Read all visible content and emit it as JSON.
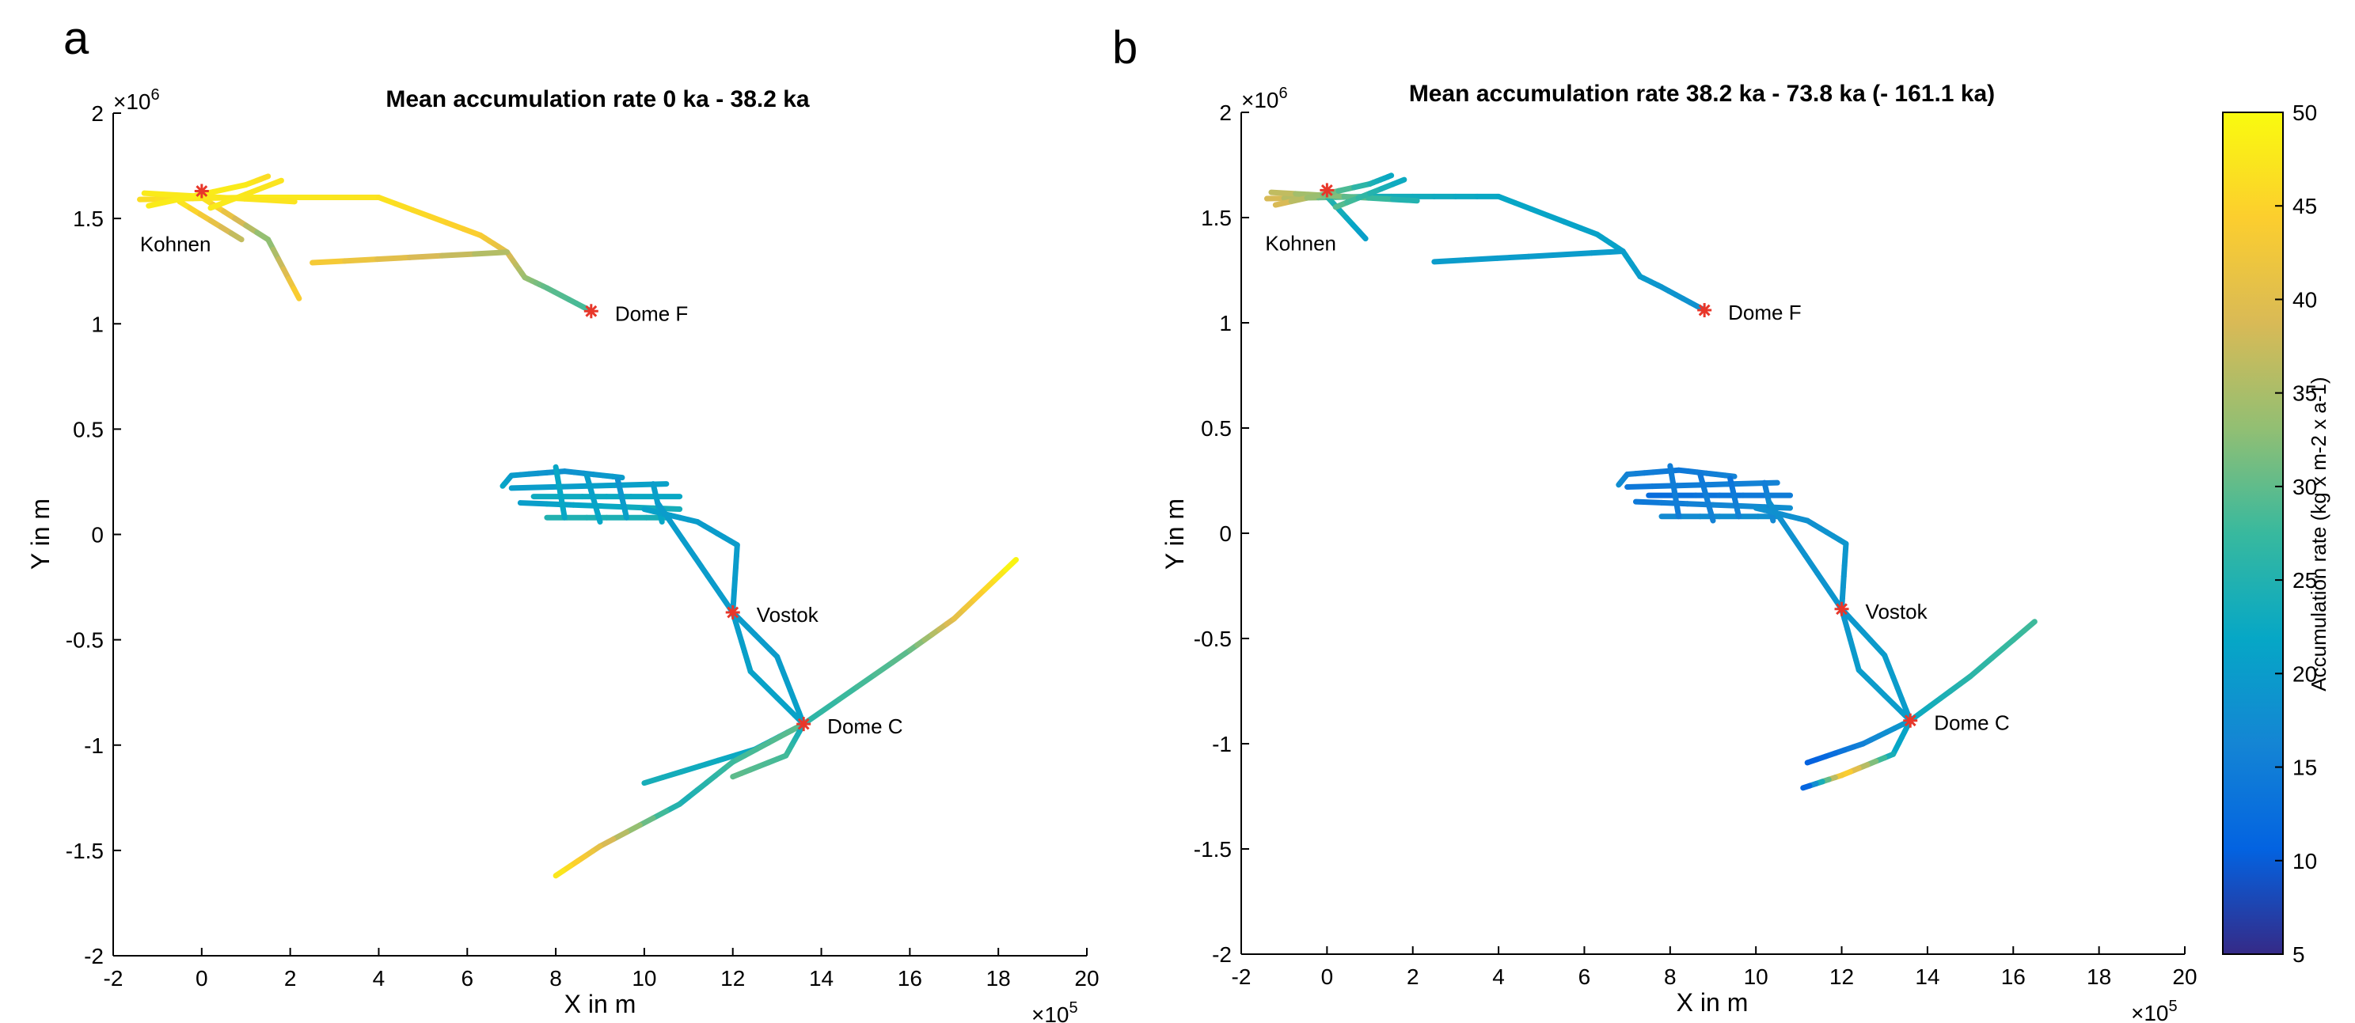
{
  "chart_data": [
    {
      "type": "scatter",
      "panel": "a",
      "title": "Mean accumulation rate 0 ka - 38.2 ka",
      "xlabel": "X in m",
      "ylabel": "Y in m",
      "x_multiplier": "×10^5",
      "y_multiplier": "×10^6",
      "xlim": [
        -2,
        20
      ],
      "ylim": [
        -2,
        2
      ],
      "xticks": [
        "-2",
        "0",
        "2",
        "4",
        "6",
        "8",
        "10",
        "12",
        "14",
        "16",
        "18",
        "20"
      ],
      "yticks": [
        "-2",
        "-1.5",
        "-1",
        "-0.5",
        "0",
        "0.5",
        "1",
        "1.5",
        "2"
      ],
      "sites": [
        {
          "name": "Kohnen",
          "x": 0,
          "y": 1.63
        },
        {
          "name": "Dome F",
          "x": 8.8,
          "y": 1.06
        },
        {
          "name": "Vostok",
          "x": 12.0,
          "y": -0.37
        },
        {
          "name": "Dome C",
          "x": 13.6,
          "y": -0.9
        }
      ],
      "tracks": [
        {
          "points": [
            [
              -1.4,
              1.59
            ],
            [
              1.0,
              1.6
            ],
            [
              4.0,
              1.6
            ],
            [
              6.3,
              1.42
            ],
            [
              6.9,
              1.34
            ],
            [
              7.3,
              1.22
            ],
            [
              7.8,
              1.17
            ],
            [
              8.8,
              1.06
            ]
          ],
          "accumulation": [
            46,
            48,
            47,
            44,
            40,
            34,
            30,
            28
          ]
        },
        {
          "points": [
            [
              2.5,
              1.29
            ],
            [
              6.9,
              1.34
            ]
          ],
          "accumulation": [
            44,
            35
          ]
        },
        {
          "points": [
            [
              0.0,
              1.6
            ],
            [
              1.5,
              1.4
            ],
            [
              2.2,
              1.12
            ]
          ],
          "accumulation": [
            48,
            32,
            45
          ]
        },
        {
          "points": [
            [
              -0.5,
              1.58
            ],
            [
              0.9,
              1.4
            ]
          ],
          "accumulation": [
            48,
            36
          ]
        },
        {
          "points": [
            [
              -1.3,
              1.62
            ],
            [
              2.1,
              1.58
            ]
          ],
          "accumulation": [
            48,
            47
          ]
        },
        {
          "points": [
            [
              -1.2,
              1.56
            ],
            [
              1.0,
              1.66
            ],
            [
              1.5,
              1.7
            ]
          ],
          "accumulation": [
            48,
            48,
            46
          ]
        },
        {
          "points": [
            [
              0.2,
              1.55
            ],
            [
              1.8,
              1.68
            ]
          ],
          "accumulation": [
            48,
            47
          ]
        },
        {
          "points": [
            [
              6.8,
              0.23
            ],
            [
              7.0,
              0.28
            ],
            [
              8.2,
              0.3
            ],
            [
              9.5,
              0.27
            ]
          ],
          "accumulation": [
            22,
            20,
            18,
            20
          ]
        },
        {
          "points": [
            [
              7.0,
              0.22
            ],
            [
              10.5,
              0.24
            ]
          ],
          "accumulation": [
            20,
            21
          ]
        },
        {
          "points": [
            [
              7.5,
              0.18
            ],
            [
              10.8,
              0.18
            ]
          ],
          "accumulation": [
            23,
            22
          ]
        },
        {
          "points": [
            [
              7.2,
              0.15
            ],
            [
              10.8,
              0.12
            ]
          ],
          "accumulation": [
            20,
            24
          ]
        },
        {
          "points": [
            [
              7.8,
              0.08
            ],
            [
              10.5,
              0.08
            ]
          ],
          "accumulation": [
            25,
            24
          ]
        },
        {
          "points": [
            [
              8.0,
              0.32
            ],
            [
              8.2,
              0.08
            ]
          ],
          "accumulation": [
            22,
            22
          ]
        },
        {
          "points": [
            [
              8.7,
              0.28
            ],
            [
              9.0,
              0.06
            ]
          ],
          "accumulation": [
            20,
            22
          ]
        },
        {
          "points": [
            [
              9.4,
              0.26
            ],
            [
              9.6,
              0.08
            ]
          ],
          "accumulation": [
            18,
            21
          ]
        },
        {
          "points": [
            [
              10.2,
              0.24
            ],
            [
              10.4,
              0.06
            ]
          ],
          "accumulation": [
            20,
            22
          ]
        },
        {
          "points": [
            [
              10.0,
              0.12
            ],
            [
              11.2,
              0.06
            ],
            [
              12.1,
              -0.05
            ],
            [
              12.0,
              -0.37
            ]
          ],
          "accumulation": [
            21,
            20,
            20,
            20
          ]
        },
        {
          "points": [
            [
              10.3,
              0.15
            ],
            [
              12.0,
              -0.37
            ]
          ],
          "accumulation": [
            20,
            20
          ]
        },
        {
          "points": [
            [
              12.0,
              -0.37
            ],
            [
              13.0,
              -0.58
            ],
            [
              13.6,
              -0.9
            ]
          ],
          "accumulation": [
            20,
            20,
            21
          ]
        },
        {
          "points": [
            [
              12.0,
              -0.37
            ],
            [
              12.4,
              -0.65
            ],
            [
              13.6,
              -0.9
            ]
          ],
          "accumulation": [
            20,
            21,
            21
          ]
        },
        {
          "points": [
            [
              13.6,
              -0.9
            ],
            [
              16.0,
              -0.55
            ],
            [
              17.0,
              -0.4
            ],
            [
              18.4,
              -0.12
            ]
          ],
          "accumulation": [
            26,
            30,
            40,
            50
          ]
        },
        {
          "points": [
            [
              13.6,
              -0.9
            ],
            [
              12.5,
              -1.02
            ],
            [
              10.0,
              -1.18
            ]
          ],
          "accumulation": [
            24,
            22,
            24
          ]
        },
        {
          "points": [
            [
              13.6,
              -0.9
            ],
            [
              12.0,
              -1.08
            ],
            [
              10.8,
              -1.28
            ],
            [
              9.0,
              -1.48
            ],
            [
              8.0,
              -1.62
            ]
          ],
          "accumulation": [
            30,
            28,
            24,
            40,
            48
          ]
        },
        {
          "points": [
            [
              13.6,
              -0.9
            ],
            [
              13.2,
              -1.05
            ],
            [
              12.0,
              -1.15
            ]
          ],
          "accumulation": [
            22,
            28,
            30
          ]
        }
      ]
    },
    {
      "type": "scatter",
      "panel": "b",
      "title": "Mean accumulation rate 38.2 ka - 73.8 ka (- 161.1 ka)",
      "xlabel": "X in m",
      "ylabel": "Y in m",
      "x_multiplier": "×10^5",
      "y_multiplier": "×10^6",
      "xlim": [
        -2,
        20
      ],
      "ylim": [
        -2,
        2
      ],
      "xticks": [
        "-2",
        "0",
        "2",
        "4",
        "6",
        "8",
        "10",
        "12",
        "14",
        "16",
        "18",
        "20"
      ],
      "yticks": [
        "-2",
        "-1.5",
        "-1",
        "-0.5",
        "0",
        "0.5",
        "1",
        "1.5",
        "2"
      ],
      "sites": [
        {
          "name": "Kohnen",
          "x": 0,
          "y": 1.63
        },
        {
          "name": "Dome F",
          "x": 8.8,
          "y": 1.06
        },
        {
          "name": "Vostok",
          "x": 12.0,
          "y": -0.36
        },
        {
          "name": "Dome C",
          "x": 13.6,
          "y": -0.89
        }
      ],
      "tracks": [
        {
          "points": [
            [
              -1.4,
              1.59
            ],
            [
              1.0,
              1.6
            ],
            [
              4.0,
              1.6
            ],
            [
              6.3,
              1.42
            ],
            [
              6.9,
              1.34
            ],
            [
              7.3,
              1.22
            ],
            [
              7.8,
              1.17
            ],
            [
              8.8,
              1.06
            ]
          ],
          "accumulation": [
            40,
            24,
            22,
            21,
            21,
            20,
            19,
            18
          ]
        },
        {
          "points": [
            [
              2.5,
              1.29
            ],
            [
              6.9,
              1.34
            ]
          ],
          "accumulation": [
            20,
            20
          ]
        },
        {
          "points": [
            [
              0.0,
              1.6
            ],
            [
              0.9,
              1.4
            ]
          ],
          "accumulation": [
            26,
            20
          ]
        },
        {
          "points": [
            [
              -1.3,
              1.62
            ],
            [
              2.1,
              1.58
            ]
          ],
          "accumulation": [
            38,
            24
          ]
        },
        {
          "points": [
            [
              -1.2,
              1.56
            ],
            [
              1.0,
              1.66
            ],
            [
              1.5,
              1.7
            ]
          ],
          "accumulation": [
            40,
            25,
            22
          ]
        },
        {
          "points": [
            [
              0.2,
              1.55
            ],
            [
              1.8,
              1.68
            ]
          ],
          "accumulation": [
            30,
            22
          ]
        },
        {
          "points": [
            [
              6.8,
              0.23
            ],
            [
              7.0,
              0.28
            ],
            [
              8.2,
              0.3
            ],
            [
              9.5,
              0.27
            ]
          ],
          "accumulation": [
            18,
            16,
            14,
            16
          ]
        },
        {
          "points": [
            [
              7.0,
              0.22
            ],
            [
              10.5,
              0.24
            ]
          ],
          "accumulation": [
            14,
            16
          ]
        },
        {
          "points": [
            [
              7.5,
              0.18
            ],
            [
              10.8,
              0.18
            ]
          ],
          "accumulation": [
            12,
            15
          ]
        },
        {
          "points": [
            [
              7.2,
              0.15
            ],
            [
              10.8,
              0.12
            ]
          ],
          "accumulation": [
            14,
            18
          ]
        },
        {
          "points": [
            [
              7.8,
              0.08
            ],
            [
              10.5,
              0.08
            ]
          ],
          "accumulation": [
            17,
            18
          ]
        },
        {
          "points": [
            [
              8.0,
              0.32
            ],
            [
              8.2,
              0.08
            ]
          ],
          "accumulation": [
            15,
            15
          ]
        },
        {
          "points": [
            [
              8.7,
              0.28
            ],
            [
              9.0,
              0.06
            ]
          ],
          "accumulation": [
            14,
            16
          ]
        },
        {
          "points": [
            [
              9.4,
              0.26
            ],
            [
              9.6,
              0.08
            ]
          ],
          "accumulation": [
            13,
            16
          ]
        },
        {
          "points": [
            [
              10.2,
              0.24
            ],
            [
              10.4,
              0.06
            ]
          ],
          "accumulation": [
            15,
            17
          ]
        },
        {
          "points": [
            [
              10.0,
              0.12
            ],
            [
              11.2,
              0.06
            ],
            [
              12.1,
              -0.05
            ],
            [
              12.0,
              -0.36
            ]
          ],
          "accumulation": [
            18,
            18,
            19,
            19
          ]
        },
        {
          "points": [
            [
              10.3,
              0.15
            ],
            [
              12.0,
              -0.36
            ]
          ],
          "accumulation": [
            18,
            19
          ]
        },
        {
          "points": [
            [
              12.0,
              -0.36
            ],
            [
              13.0,
              -0.58
            ],
            [
              13.6,
              -0.89
            ]
          ],
          "accumulation": [
            19,
            20,
            20
          ]
        },
        {
          "points": [
            [
              12.0,
              -0.36
            ],
            [
              12.4,
              -0.65
            ],
            [
              13.6,
              -0.89
            ]
          ],
          "accumulation": [
            19,
            20,
            20
          ]
        },
        {
          "points": [
            [
              13.6,
              -0.89
            ],
            [
              15.0,
              -0.68
            ],
            [
              16.5,
              -0.42
            ]
          ],
          "accumulation": [
            22,
            26,
            28
          ]
        },
        {
          "points": [
            [
              13.6,
              -0.89
            ],
            [
              12.5,
              -1.0
            ],
            [
              11.2,
              -1.09
            ]
          ],
          "accumulation": [
            20,
            16,
            10
          ]
        },
        {
          "points": [
            [
              13.6,
              -0.89
            ],
            [
              13.2,
              -1.05
            ],
            [
              12.0,
              -1.15
            ],
            [
              11.1,
              -1.21
            ]
          ],
          "accumulation": [
            21,
            22,
            46,
            8
          ]
        }
      ],
      "colorbar": {
        "label": "Accumulation rate (kg x m-2 x a-1)",
        "range": [
          5,
          50
        ],
        "ticks": [
          "5",
          "10",
          "15",
          "20",
          "25",
          "30",
          "35",
          "40",
          "45",
          "50"
        ],
        "colormap": "parula",
        "colors": [
          "#352a87",
          "#0363e1",
          "#1485d4",
          "#06a7c6",
          "#38b99e",
          "#92bf73",
          "#d9ba56",
          "#fcce2e",
          "#f9fb0e"
        ]
      }
    }
  ],
  "site_marker_color": "#e8372a"
}
